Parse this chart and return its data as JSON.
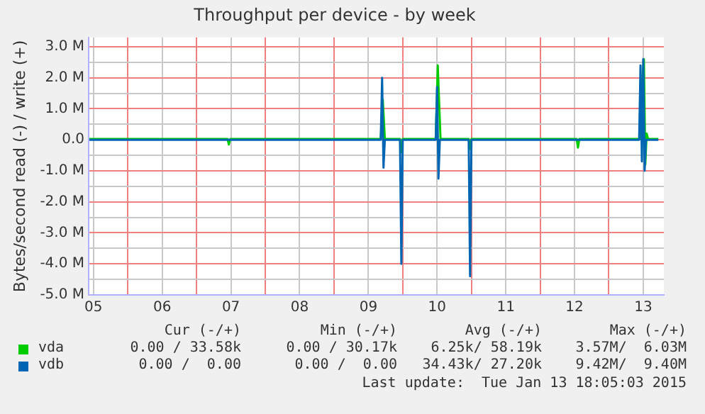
{
  "chart_data": {
    "type": "line",
    "title": "Throughput per device - by week",
    "ylabel": "Bytes/second read (-) / write (+)",
    "xlim": [
      4.93,
      13.3
    ],
    "xticks": [
      {
        "value": 5,
        "label": "05"
      },
      {
        "value": 5.5,
        "label": null
      },
      {
        "value": 6,
        "label": "06"
      },
      {
        "value": 6.5,
        "label": null
      },
      {
        "value": 7,
        "label": "07"
      },
      {
        "value": 7.5,
        "label": null
      },
      {
        "value": 8,
        "label": "08"
      },
      {
        "value": 8.5,
        "label": null
      },
      {
        "value": 9,
        "label": "09"
      },
      {
        "value": 9.5,
        "label": null
      },
      {
        "value": 10,
        "label": "10"
      },
      {
        "value": 10.5,
        "label": null
      },
      {
        "value": 11,
        "label": "11"
      },
      {
        "value": 11.5,
        "label": null
      },
      {
        "value": 12,
        "label": "12"
      },
      {
        "value": 12.5,
        "label": null
      },
      {
        "value": 13,
        "label": "13"
      }
    ],
    "ylim": [
      -5,
      3.3
    ],
    "yticks": [
      {
        "value": -5,
        "label": "-5.0 M"
      },
      {
        "value": -4.5,
        "label": null
      },
      {
        "value": -4,
        "label": "-4.0 M"
      },
      {
        "value": -3.5,
        "label": null
      },
      {
        "value": -3,
        "label": "-3.0 M"
      },
      {
        "value": -2.5,
        "label": null
      },
      {
        "value": -2,
        "label": "-2.0 M"
      },
      {
        "value": -1.5,
        "label": null
      },
      {
        "value": -1,
        "label": "-1.0 M"
      },
      {
        "value": -0.5,
        "label": null
      },
      {
        "value": 0,
        "label": "0.0"
      },
      {
        "value": 0.5,
        "label": null
      },
      {
        "value": 1,
        "label": "1.0 M"
      },
      {
        "value": 1.5,
        "label": null
      },
      {
        "value": 2,
        "label": "2.0 M"
      },
      {
        "value": 2.5,
        "label": null
      },
      {
        "value": 3,
        "label": "3.0 M"
      }
    ],
    "grid": true,
    "legend": "bottom left",
    "marker": "none",
    "line_style": "solid",
    "series": [
      {
        "name": "vda",
        "color": "#00cc00",
        "x": [
          4.94,
          6.95,
          6.97,
          6.99,
          9.18,
          9.21,
          9.24,
          9.46,
          9.48,
          9.5,
          9.98,
          10.01,
          10.05,
          10.46,
          10.48,
          10.5,
          12.03,
          12.05,
          12.07,
          12.96,
          12.98,
          13.01,
          13.03,
          13.05,
          13.07,
          13.22
        ],
        "values": [
          0.03,
          0.03,
          -0.15,
          0.03,
          0.03,
          1.3,
          0.03,
          0.03,
          -0.4,
          0.03,
          0.03,
          2.4,
          0.03,
          0.03,
          -0.3,
          0.03,
          0.03,
          -0.25,
          0.03,
          0.03,
          1.8,
          2.6,
          -0.8,
          0.2,
          0.03,
          0.03
        ]
      },
      {
        "name": "vdb",
        "color": "#0066b3",
        "x": [
          4.94,
          9.18,
          9.2,
          9.22,
          9.24,
          9.46,
          9.48,
          9.5,
          9.98,
          10.0,
          10.02,
          10.04,
          10.46,
          10.48,
          10.5,
          12.94,
          12.96,
          12.98,
          13.0,
          13.02,
          13.04,
          13.22
        ],
        "values": [
          0,
          0,
          2.0,
          -0.9,
          0,
          0,
          -4.0,
          0,
          0,
          1.7,
          -1.25,
          0,
          0,
          -4.4,
          0,
          0,
          2.4,
          -0.7,
          2.6,
          -1.0,
          0,
          0
        ]
      }
    ],
    "annotations": [
      "Cur (-/+)",
      "Min (-/+)",
      "Avg (-/+)",
      "Max (-/+)",
      "0.00 / 33.58k",
      "0.00 / 30.17k",
      "6.25k/ 58.19k",
      "3.57M/  6.03M",
      "0.00 /  0.00",
      "0.00 /  0.00",
      "34.43k/ 27.20k",
      "9.42M/  9.40M",
      "Last update:  Tue Jan 13 18:05:03 2015"
    ]
  }
}
